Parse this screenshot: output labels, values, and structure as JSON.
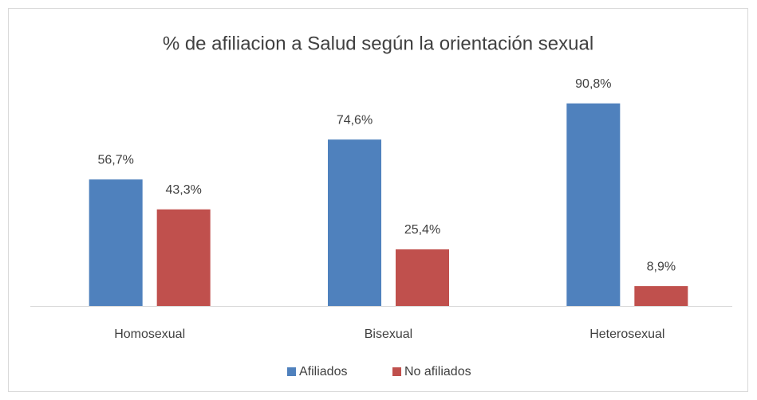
{
  "chart_data": {
    "type": "bar",
    "title": "% de afiliacion a Salud según la orientación sexual",
    "categories": [
      "Homosexual",
      "Bisexual",
      "Heterosexual"
    ],
    "series": [
      {
        "name": "Afiliados",
        "color": "#4f81bd",
        "values": [
          56.7,
          74.6,
          90.8
        ],
        "value_labels": [
          "56,7%",
          "74,6%",
          "90,8%"
        ]
      },
      {
        "name": "No afiliados",
        "color": "#c0504d",
        "values": [
          43.3,
          25.4,
          8.9
        ],
        "value_labels": [
          "43,3%",
          "25,4%",
          "8,9%"
        ]
      }
    ],
    "ylim": [
      0,
      100
    ],
    "legend": "bottom"
  }
}
